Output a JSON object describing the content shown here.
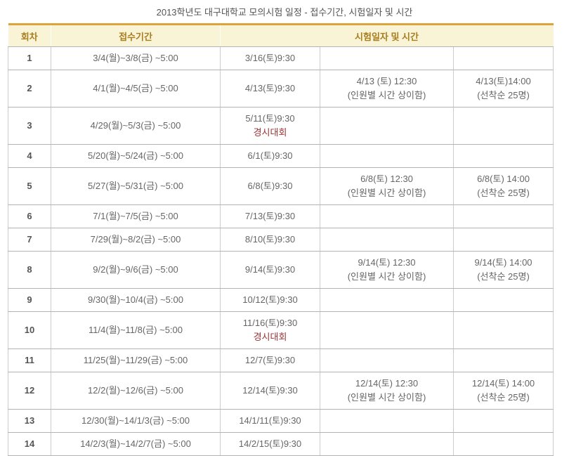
{
  "title": "2013학년도 대구대학교 모의시험 일정 - 접수기간, 시험일자 및 시간",
  "colors": {
    "page_background": "#ffffff",
    "header_top_border": "#dfa33c",
    "header_background": "#faf4d7",
    "header_text": "#a87d1e",
    "body_text": "#666666",
    "round_text": "#555555",
    "highlight_red": "#993333",
    "row_border": "#b3b3b3",
    "column_border": "#cccccc"
  },
  "table": {
    "headers": {
      "round": "회차",
      "period": "접수기간",
      "exam": "시험일자 및 시간"
    },
    "rows": [
      {
        "round": "1",
        "period": "3/4(월)~3/8(금) ~5:00",
        "exam_930": [
          {
            "text": "3/16(토)9:30"
          }
        ],
        "exam_1230": [],
        "exam_1400": []
      },
      {
        "round": "2",
        "period": "4/1(월)~4/5(금) ~5:00",
        "exam_930": [
          {
            "text": "4/13(토)9:30"
          }
        ],
        "exam_1230": [
          {
            "text": "4/13 (토) 12:30"
          },
          {
            "text": "(인원별 시간 상이함)"
          }
        ],
        "exam_1400": [
          {
            "text": "4/13(토)14:00"
          },
          {
            "text": "(선착순 25명)"
          }
        ]
      },
      {
        "round": "3",
        "period": "4/29(월)~5/3(금) ~5:00",
        "exam_930": [
          {
            "text": "5/11(토)9:30"
          },
          {
            "text": "경시대회",
            "red": true
          }
        ],
        "exam_1230": [],
        "exam_1400": []
      },
      {
        "round": "4",
        "period": "5/20(월)~5/24(금) ~5:00",
        "exam_930": [
          {
            "text": "6/1(토)9:30"
          }
        ],
        "exam_1230": [],
        "exam_1400": []
      },
      {
        "round": "5",
        "period": "5/27(월)~5/31(금) ~5:00",
        "exam_930": [
          {
            "text": "6/8(토)9:30"
          }
        ],
        "exam_1230": [
          {
            "text": "6/8(토) 12:30"
          },
          {
            "text": "(인원별 시간 상이함)"
          }
        ],
        "exam_1400": [
          {
            "text": "6/8(토) 14:00"
          },
          {
            "text": "(선착순 25명)"
          }
        ]
      },
      {
        "round": "6",
        "period": "7/1(월)~7/5(금) ~5:00",
        "exam_930": [
          {
            "text": "7/13(토)9:30"
          }
        ],
        "exam_1230": [],
        "exam_1400": []
      },
      {
        "round": "7",
        "period": "7/29(월)~8/2(금) ~5:00",
        "exam_930": [
          {
            "text": "8/10(토)9:30"
          }
        ],
        "exam_1230": [],
        "exam_1400": []
      },
      {
        "round": "8",
        "period": "9/2(월)~9/6(금) ~5:00",
        "exam_930": [
          {
            "text": "9/14(토)9:30"
          }
        ],
        "exam_1230": [
          {
            "text": "9/14(토) 12:30"
          },
          {
            "text": "(인원별 시간 상이함)"
          }
        ],
        "exam_1400": [
          {
            "text": "9/14(토) 14:00"
          },
          {
            "text": "(선착순 25명)"
          }
        ]
      },
      {
        "round": "9",
        "period": "9/30(월)~10/4(금) ~5:00",
        "exam_930": [
          {
            "text": "10/12(토)9:30"
          }
        ],
        "exam_1230": [],
        "exam_1400": []
      },
      {
        "round": "10",
        "period": "11/4(월)~11/8(금) ~5:00",
        "exam_930": [
          {
            "text": "11/16(토)9:30"
          },
          {
            "text": "경시대회",
            "red": true
          }
        ],
        "exam_1230": [],
        "exam_1400": []
      },
      {
        "round": "11",
        "period": "11/25(월)~11/29(금) ~5:00",
        "exam_930": [
          {
            "text": "12/7(토)9:30"
          }
        ],
        "exam_1230": [],
        "exam_1400": []
      },
      {
        "round": "12",
        "period": "12/2(월)~12/6(금) ~5:00",
        "exam_930": [
          {
            "text": "12/14(토)9:30"
          }
        ],
        "exam_1230": [
          {
            "text": "12/14(토) 12:30"
          },
          {
            "text": "(인원별 시간 상이함)"
          }
        ],
        "exam_1400": [
          {
            "text": "12/14(토) 14:00"
          },
          {
            "text": "(선착순 25명)"
          }
        ]
      },
      {
        "round": "13",
        "period": "12/30(월)~14/1/3(금) ~5:00",
        "exam_930": [
          {
            "text": "14/1/11(토)9:30"
          }
        ],
        "exam_1230": [],
        "exam_1400": []
      },
      {
        "round": "14",
        "period": "14/2/3(월)~14/2/7(금) ~5:00",
        "exam_930": [
          {
            "text": "14/2/15(토)9:30"
          }
        ],
        "exam_1230": [],
        "exam_1400": []
      }
    ]
  }
}
